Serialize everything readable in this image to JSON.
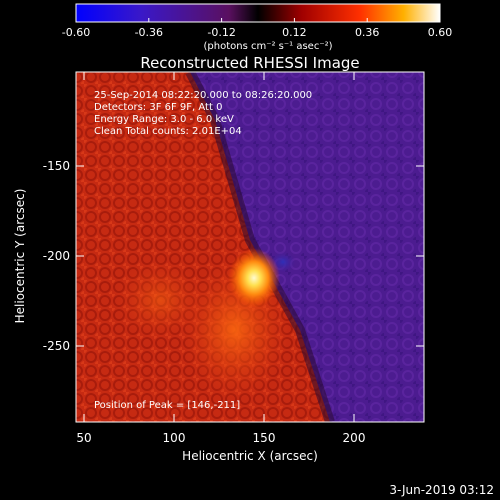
{
  "colorbar": {
    "ticks": [
      "-0.60",
      "-0.36",
      "-0.12",
      "0.12",
      "0.36",
      "0.60"
    ],
    "unit_label": "(photons cm⁻² s⁻¹ asec⁻²)",
    "min": -0.6,
    "max": 0.6
  },
  "title": "Reconstructed RHESSI Image",
  "info": {
    "line1": "25-Sep-2014 08:22:20.000 to 08:26:20.000",
    "line2": "Detectors: 3F 6F 9F, Att 0",
    "line3": "Energy Range: 3.0 - 6.0 keV",
    "line4": "Clean     Total counts: 2.01E+04"
  },
  "peak_label": "Position of Peak = [146,-211]",
  "x_axis": {
    "label": "Heliocentric X (arcsec)",
    "ticks": [
      "50",
      "100",
      "150",
      "200"
    ]
  },
  "y_axis": {
    "label": "Heliocentric Y (arcsec)",
    "ticks": [
      "-150",
      "-200",
      "-250"
    ]
  },
  "footer_timestamp": "3-Jun-2019 03:12",
  "colors": {
    "background": "#000000",
    "text": "#ffffff",
    "flare_red": "#c82a10",
    "flare_core": "#fff2a0",
    "negative_purple": "#4a1a8e"
  }
}
